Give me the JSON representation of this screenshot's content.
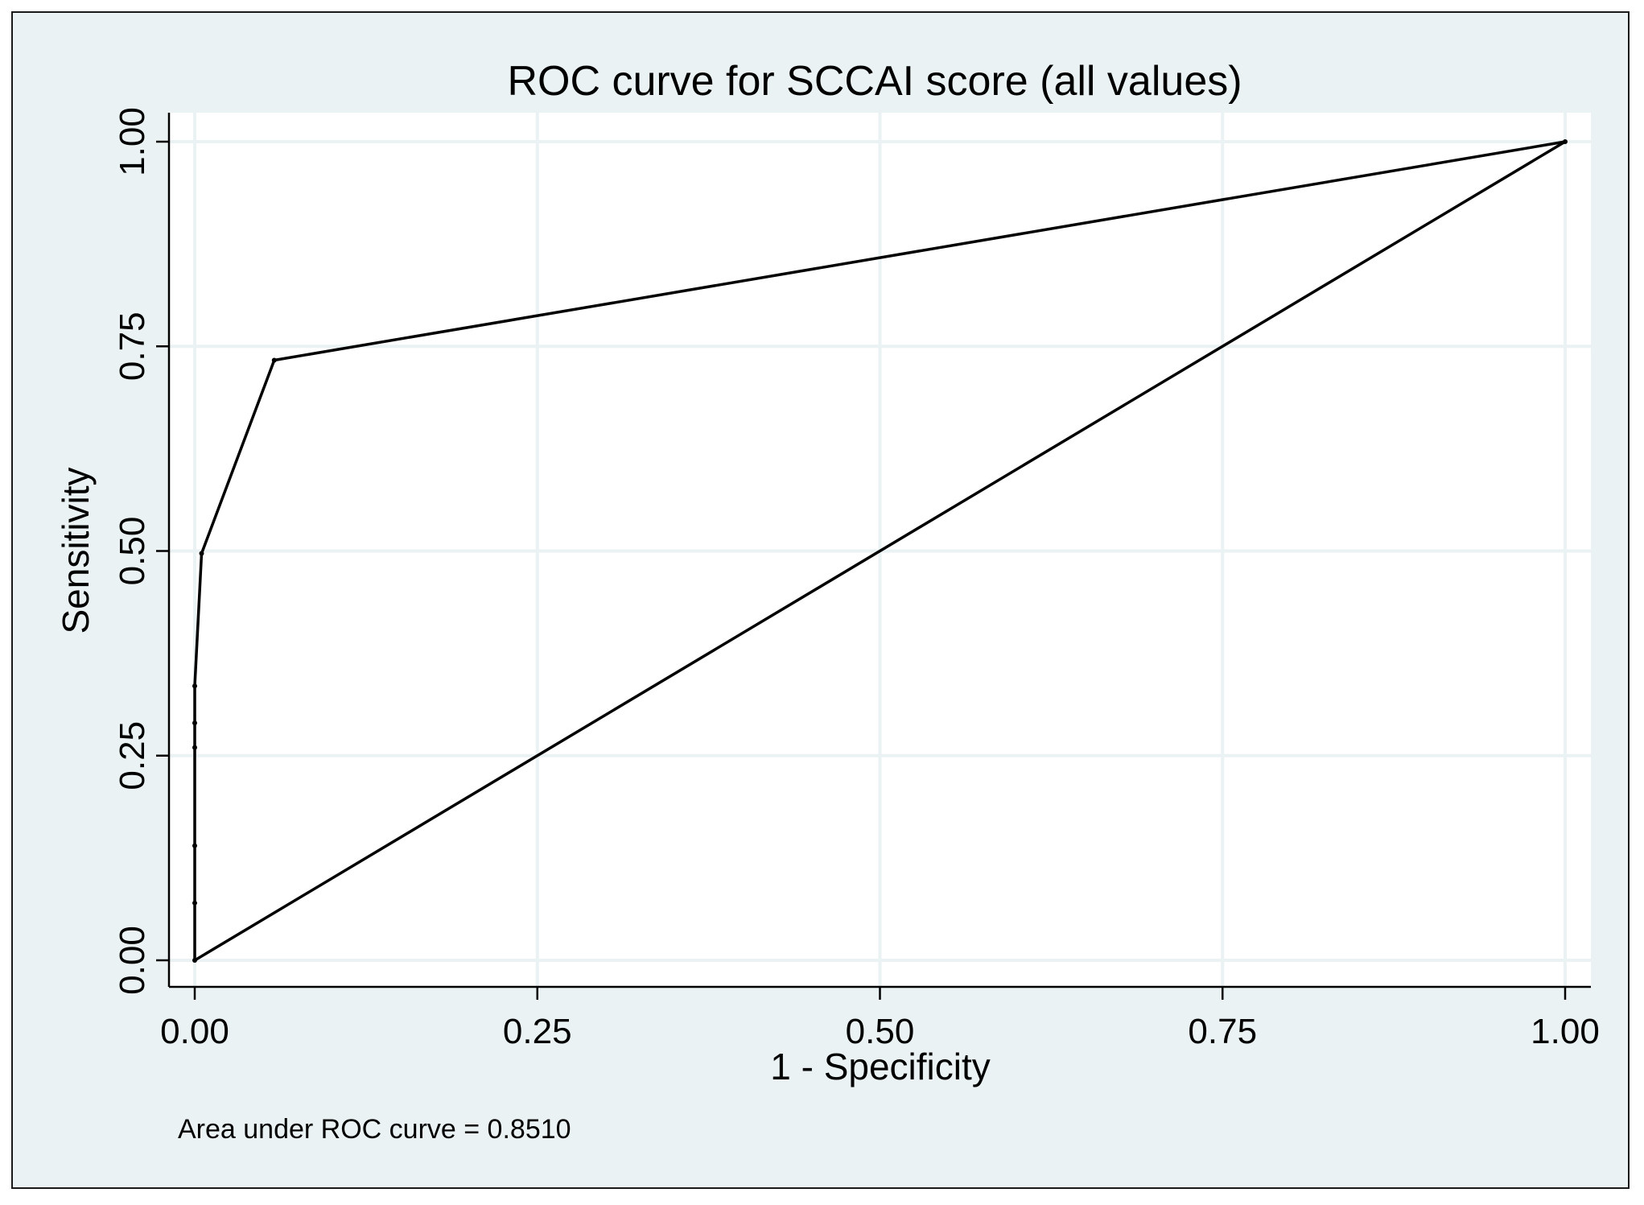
{
  "chart_data": {
    "type": "line",
    "title": "ROC curve for SCCAI score (all values)",
    "xlabel": "1 - Specificity",
    "ylabel": "Sensitivity",
    "xlim": [
      0,
      1
    ],
    "ylim": [
      0,
      1
    ],
    "x_ticks": [
      0,
      0.25,
      0.5,
      0.75,
      1
    ],
    "y_ticks": [
      0,
      0.25,
      0.5,
      0.75,
      1
    ],
    "x_tick_labels": [
      "0.00",
      "0.25",
      "0.50",
      "0.75",
      "1.00"
    ],
    "y_tick_labels": [
      "0.00",
      "0.25",
      "0.50",
      "0.75",
      "1.00"
    ],
    "grid": true,
    "series": [
      {
        "name": "ROC curve",
        "x": [
          0,
          0,
          0,
          0,
          0,
          0,
          0.005,
          0.058,
          1
        ],
        "y": [
          0,
          0.07,
          0.14,
          0.26,
          0.29,
          0.335,
          0.497,
          0.733,
          1
        ]
      },
      {
        "name": "Reference line",
        "x": [
          0,
          1
        ],
        "y": [
          0,
          1
        ]
      }
    ],
    "annotation": "Area under ROC curve = 0.8510",
    "colors": {
      "background": "#eaf2f3",
      "plot_area": "#ffffff",
      "grid": "#eaf2f3",
      "line": "#000000"
    }
  }
}
